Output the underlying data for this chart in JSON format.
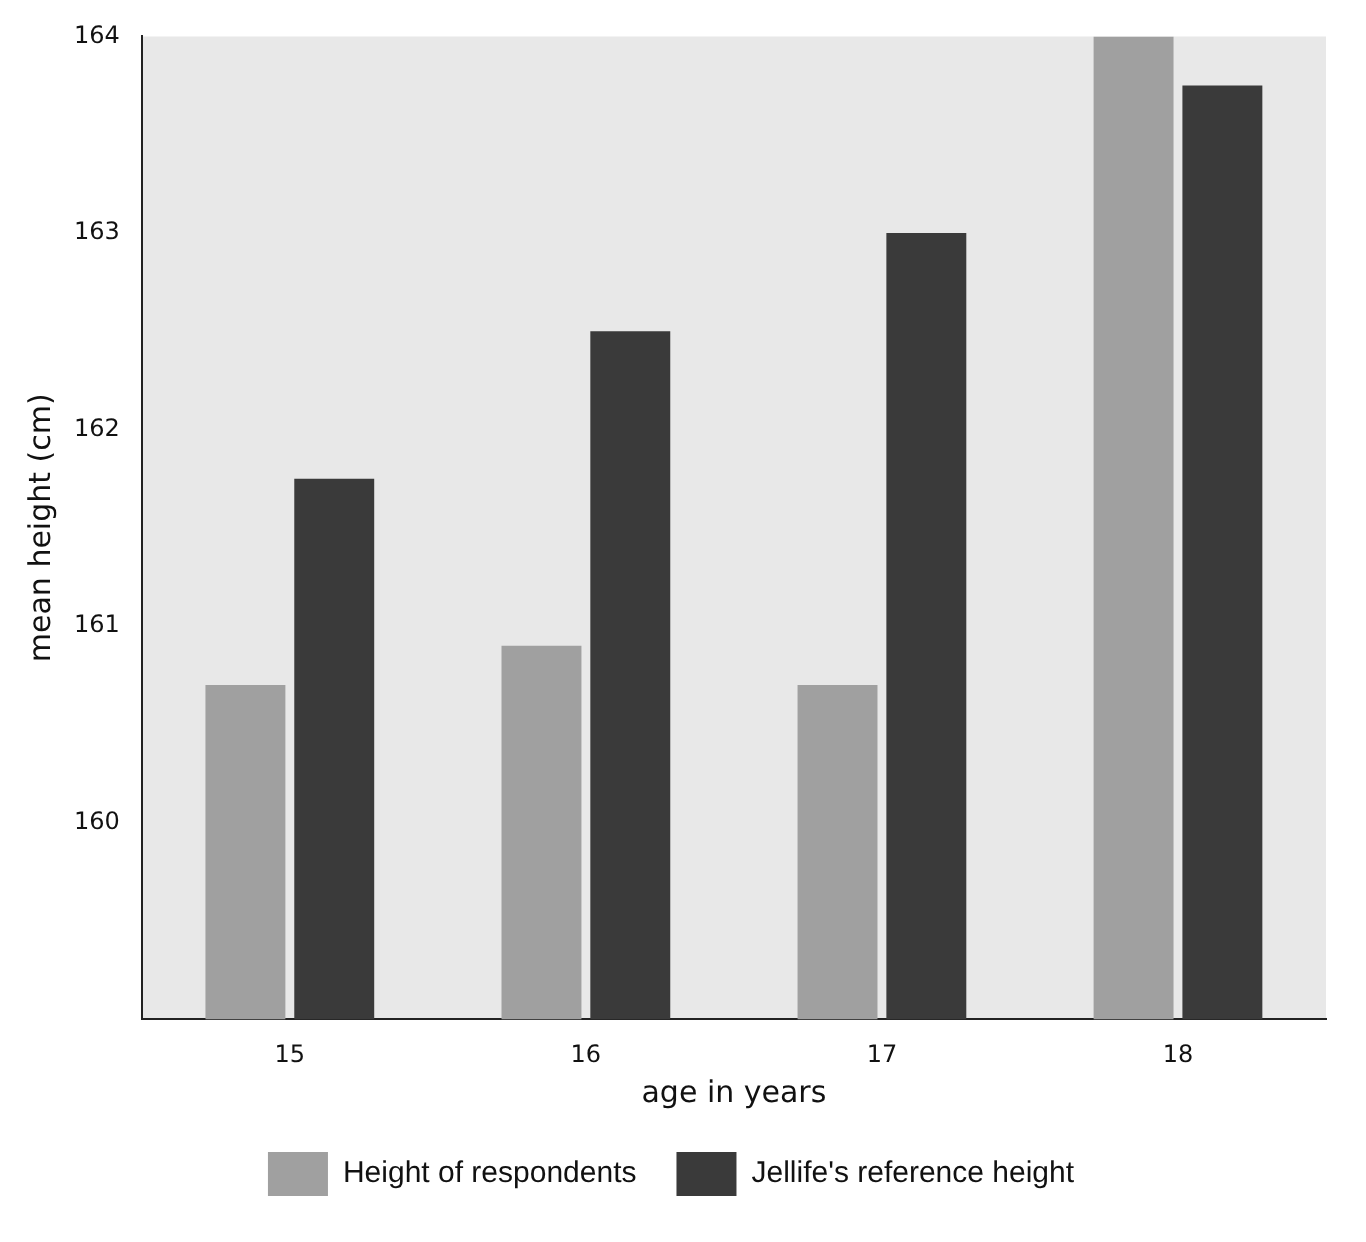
{
  "chart_data": {
    "type": "bar",
    "xlabel": "age in years",
    "ylabel": "mean height (cm)",
    "categories": [
      "15",
      "16",
      "17",
      "18"
    ],
    "series": [
      {
        "name": "Height of respondents",
        "color": "#a0a0a0",
        "values": [
          160.7,
          160.9,
          160.7,
          164.0
        ]
      },
      {
        "name": "Jellife's reference height",
        "color": "#3a3a3a",
        "values": [
          161.75,
          162.5,
          163.0,
          163.75
        ]
      }
    ],
    "ylim": [
      159,
      164
    ],
    "yticks": [
      160,
      161,
      162,
      163,
      164
    ],
    "grid": false,
    "legend": "bottom"
  }
}
